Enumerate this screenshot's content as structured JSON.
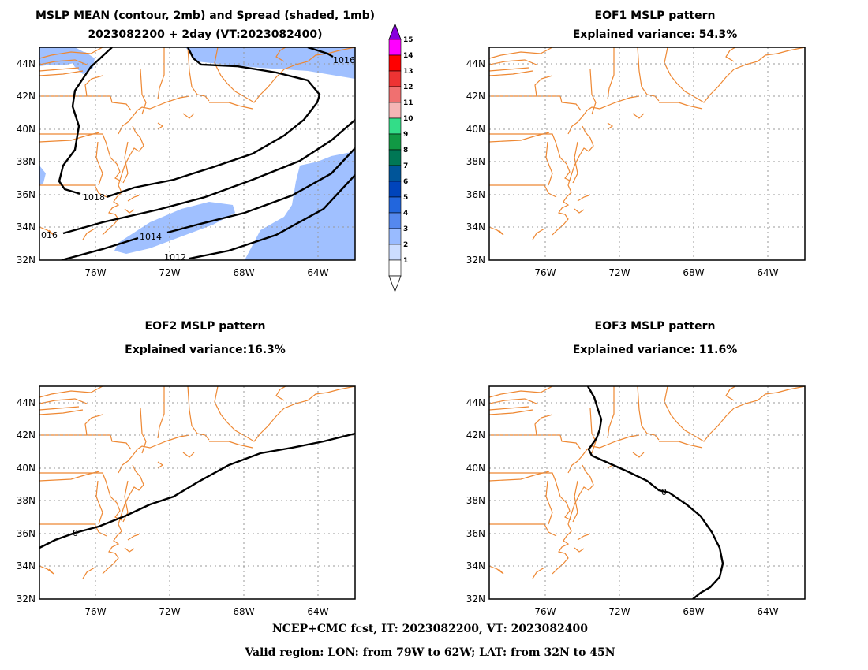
{
  "panels": [
    {
      "id": "mean",
      "title_lines": [
        "MSLP MEAN (contour, 2mb) and Spread (shaded, 1mb)",
        "2023082200 + 2day (VT:2023082400)"
      ],
      "contour_labels": [
        "1016",
        "1018",
        "016",
        "1014",
        "1012"
      ]
    },
    {
      "id": "eof1",
      "title_lines": [
        "EOF1 MSLP pattern",
        "Explained variance: 54.3%"
      ],
      "contour_labels": []
    },
    {
      "id": "eof2",
      "title_lines": [
        "EOF2 MSLP pattern",
        "Explained variance:16.3%"
      ],
      "contour_labels": [
        "0"
      ]
    },
    {
      "id": "eof3",
      "title_lines": [
        "EOF3 MSLP pattern",
        "Explained variance: 11.6%"
      ],
      "contour_labels": [
        "0"
      ]
    }
  ],
  "axes": {
    "lat_labels": [
      "44N",
      "42N",
      "40N",
      "38N",
      "36N",
      "34N",
      "32N"
    ],
    "lon_labels": [
      "76W",
      "72W",
      "68W",
      "64W"
    ]
  },
  "colorbar": {
    "labels": [
      "15",
      "14",
      "13",
      "12",
      "11",
      "10",
      "9",
      "8",
      "7",
      "6",
      "5",
      "4",
      "3",
      "2",
      "1"
    ],
    "colors": [
      "#ff00ff",
      "#ff0000",
      "#ee3333",
      "#f07070",
      "#f5b5b5",
      "#33dd88",
      "#119944",
      "#007755",
      "#005599",
      "#0044bb",
      "#2266dd",
      "#5588ee",
      "#99bbff",
      "#ccddff",
      "#ffffff"
    ],
    "top_color": "#8800dd",
    "spread_fill": "#a0c0ff"
  },
  "footer": {
    "line1": "NCEP+CMC fcst, IT: 2023082200, VT: 2023082400",
    "line2": "Valid region: LON: from 79W to 62W; LAT: from 32N to 45N"
  }
}
